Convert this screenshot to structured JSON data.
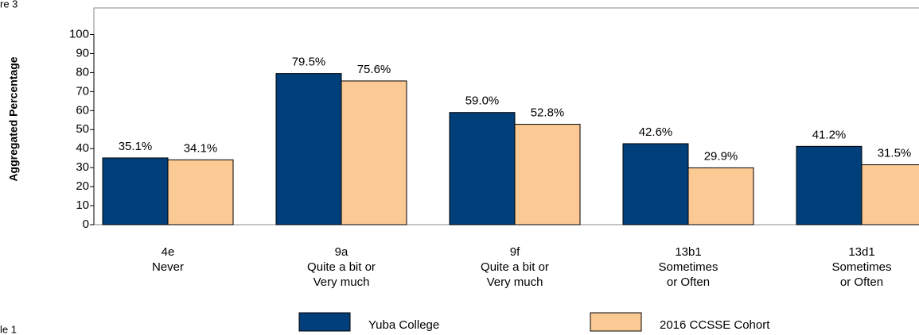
{
  "chart_data": {
    "type": "bar",
    "annotations": [
      "re 3",
      "le 1"
    ],
    "y_axis_label": "Aggregated Percentage",
    "categories": [
      [
        "4e",
        "Never"
      ],
      [
        "9a",
        "Quite a bit or",
        "Very much"
      ],
      [
        "9f",
        "Quite a bit or",
        "Very much"
      ],
      [
        "13b1",
        "Sometimes",
        "or Often"
      ],
      [
        "13d1",
        "Sometimes",
        "or Often"
      ]
    ],
    "series": [
      {
        "name": "Yuba College",
        "color": "#003f7a",
        "values": [
          35.1,
          79.5,
          59.0,
          42.6,
          41.2
        ],
        "value_labels": [
          "35.1%",
          "79.5%",
          "59.0%",
          "42.6%",
          "41.2%"
        ]
      },
      {
        "name": "2016 CCSSE Cohort",
        "color": "#fbc993",
        "values": [
          34.1,
          75.6,
          52.8,
          29.9,
          31.5
        ],
        "value_labels": [
          "34.1%",
          "75.6%",
          "52.8%",
          "29.9%",
          "31.5%"
        ]
      }
    ],
    "ylim": [
      0,
      114
    ],
    "yticks": [
      0,
      10,
      20,
      30,
      40,
      50,
      60,
      70,
      80,
      90,
      100
    ]
  }
}
